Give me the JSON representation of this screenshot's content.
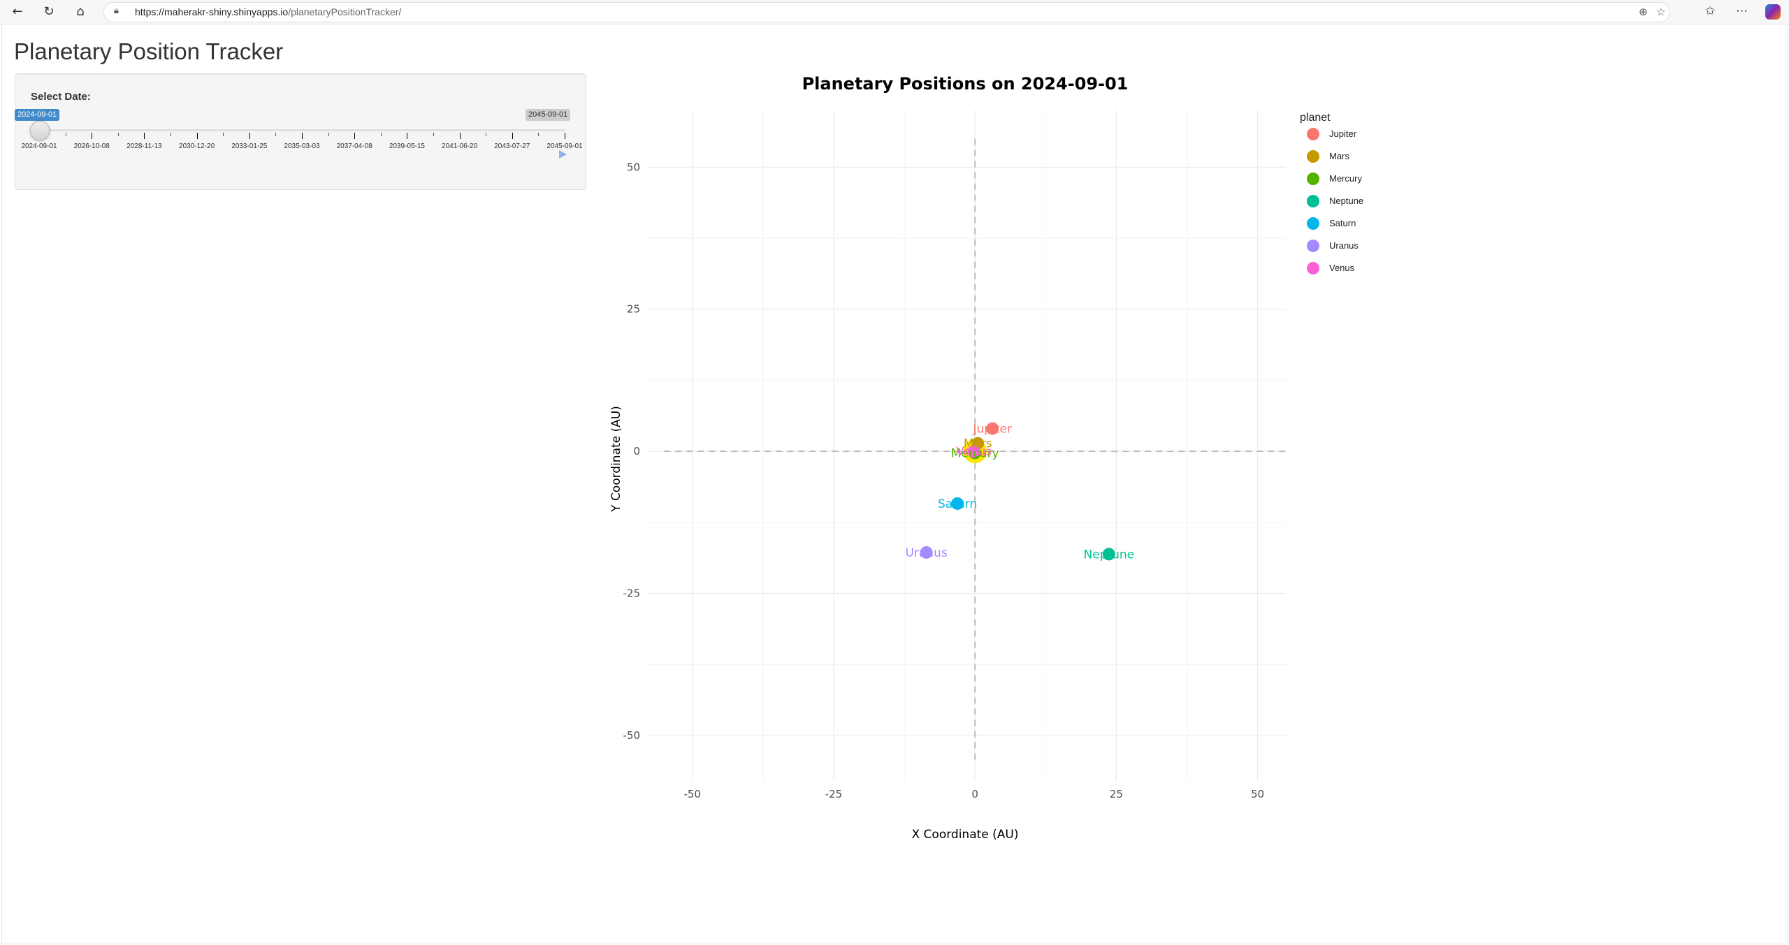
{
  "browser": {
    "url_host": "https://maherakr-shiny.shinyapps.io",
    "url_path": "/planetaryPositionTracker/"
  },
  "app": {
    "title": "Planetary Position Tracker"
  },
  "sidebar": {
    "date_label": "Select Date:",
    "slider_value": "2024-09-01",
    "slider_max": "2045-09-01",
    "slider_position_fraction": 0,
    "tick_labels": [
      "2024-09-01",
      "2026-10-08",
      "2028-11-13",
      "2030-12-20",
      "2033-01-25",
      "2035-03-03",
      "2037-04-08",
      "2039-05-15",
      "2041-06-20",
      "2043-07-27",
      "2045-09-01"
    ]
  },
  "chart_data": {
    "type": "scatter",
    "title": "Planetary Positions on 2024-09-01",
    "xlabel": "X Coordinate (AU)",
    "ylabel": "Y Coordinate (AU)",
    "xlim": [
      -58,
      55
    ],
    "ylim": [
      -58,
      60
    ],
    "x_ticks": [
      -50,
      -25,
      0,
      25,
      50
    ],
    "x_tick_labels": [
      "-50",
      "-25",
      "0",
      "25",
      "50"
    ],
    "y_ticks": [
      -50,
      -25,
      0,
      25,
      50
    ],
    "y_tick_labels": [
      "-50",
      "-25",
      "0",
      "25",
      "50"
    ],
    "grid": true,
    "legend_title": "planet",
    "legend_position": "right",
    "sun": {
      "x": 0,
      "y": 0,
      "color": "#FFE600"
    },
    "series": [
      {
        "name": "Jupiter",
        "color": "#F8766D",
        "x": 3.1,
        "y": 4.0
      },
      {
        "name": "Mars",
        "color": "#C49A00",
        "x": 0.5,
        "y": 1.4
      },
      {
        "name": "Mercury",
        "color": "#53B400",
        "x": 0.0,
        "y": -0.3
      },
      {
        "name": "Neptune",
        "color": "#00C094",
        "x": 23.7,
        "y": -18.1
      },
      {
        "name": "Saturn",
        "color": "#00B6EB",
        "x": -3.1,
        "y": -9.2
      },
      {
        "name": "Uranus",
        "color": "#A58AFF",
        "x": -8.6,
        "y": -17.8
      },
      {
        "name": "Venus",
        "color": "#FB61D7",
        "x": -0.2,
        "y": 0.0
      }
    ]
  }
}
